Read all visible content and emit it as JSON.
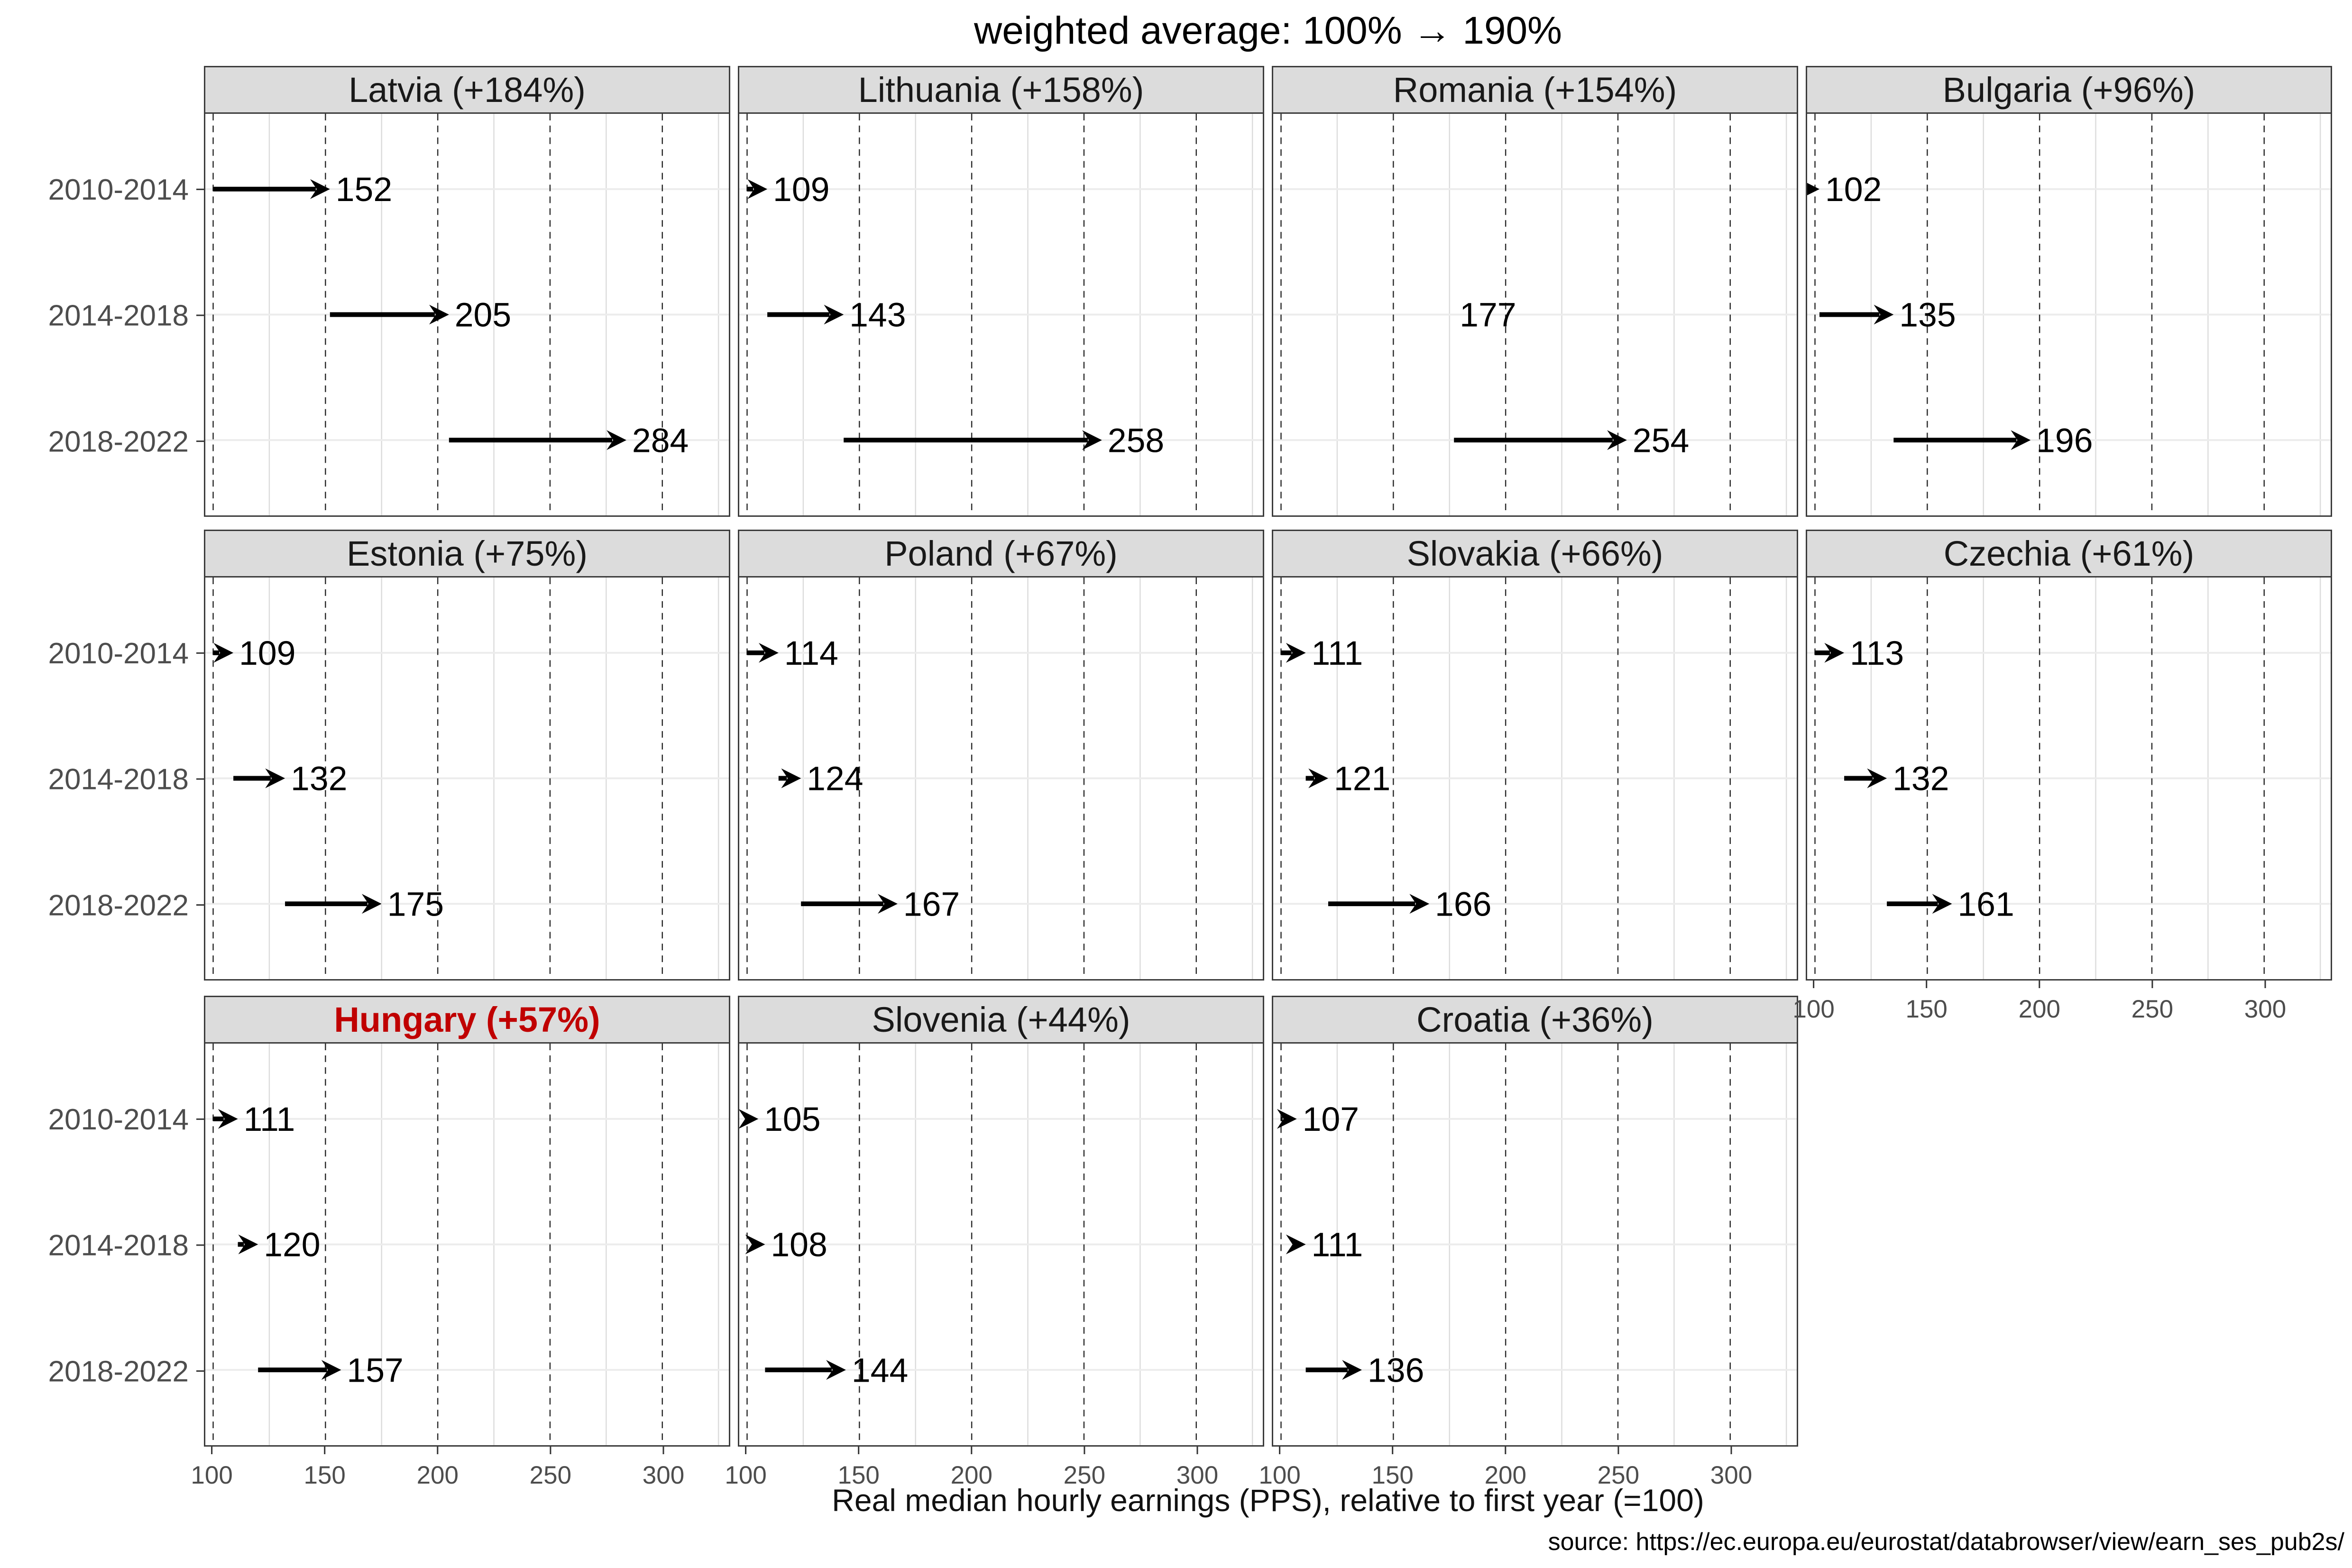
{
  "title": "weighted average: 100% → 190%",
  "axis_title": "Real median hourly earnings (PPS), relative to first year (=100)",
  "source_note": "source: https://ec.europa.eu/eurostat/databrowser/view/earn_ses_pub2s/",
  "colors": {
    "highlight_red": "#c00000",
    "strip_background": "#dcdcdc",
    "panel_border": "#3c3c3c",
    "grid_major_dashed": "#2b2b2b",
    "grid_minor": "#dcdcdc",
    "grid_row": "#ececec",
    "axis_text": "#4d4d4d",
    "arrow": "#000000"
  },
  "chart_data": {
    "type": "scatter",
    "variant": "faceted horizontal arrow (dumbbell) chart, 4 columns x 3 rows of facets",
    "title": "weighted average: 100% → 190%",
    "xlabel": "Real median hourly earnings (PPS), relative to first year (=100)",
    "categories": [
      "2010-2014",
      "2014-2018",
      "2018-2022"
    ],
    "x_ticks": [
      100,
      150,
      200,
      250,
      300
    ],
    "x_minor_ticks": [
      125,
      175,
      225,
      275,
      325
    ],
    "xlim": [
      96.5,
      330
    ],
    "grid": "dashed vertical majors, light solid minors, light horizontal row lines",
    "legend": "none",
    "panels": [
      {
        "country": "Latvia",
        "label": "Latvia (+184%)",
        "growth_pct": 184,
        "highlight": false,
        "segments": [
          {
            "period": "2010-2014",
            "from": 100,
            "to": 152
          },
          {
            "period": "2014-2018",
            "from": 152,
            "to": 205
          },
          {
            "period": "2018-2022",
            "from": 205,
            "to": 284
          }
        ]
      },
      {
        "country": "Lithuania",
        "label": "Lithuania (+158%)",
        "growth_pct": 158,
        "highlight": false,
        "segments": [
          {
            "period": "2010-2014",
            "from": 100,
            "to": 109
          },
          {
            "period": "2014-2018",
            "from": 109,
            "to": 143
          },
          {
            "period": "2018-2022",
            "from": 143,
            "to": 258
          }
        ]
      },
      {
        "country": "Romania",
        "label": "Romania (+154%)",
        "growth_pct": 154,
        "highlight": false,
        "segments": [
          {
            "period": "2010-2014",
            "from": null,
            "to": null
          },
          {
            "period": "2014-2018",
            "from": null,
            "to": 177
          },
          {
            "period": "2018-2022",
            "from": 177,
            "to": 254
          }
        ]
      },
      {
        "country": "Bulgaria",
        "label": "Bulgaria (+96%)",
        "growth_pct": 96,
        "highlight": false,
        "segments": [
          {
            "period": "2010-2014",
            "from": 100,
            "to": 102
          },
          {
            "period": "2014-2018",
            "from": 102,
            "to": 135
          },
          {
            "period": "2018-2022",
            "from": 135,
            "to": 196
          }
        ]
      },
      {
        "country": "Estonia",
        "label": "Estonia (+75%)",
        "growth_pct": 75,
        "highlight": false,
        "segments": [
          {
            "period": "2010-2014",
            "from": 100,
            "to": 109
          },
          {
            "period": "2014-2018",
            "from": 109,
            "to": 132
          },
          {
            "period": "2018-2022",
            "from": 132,
            "to": 175
          }
        ]
      },
      {
        "country": "Poland",
        "label": "Poland (+67%)",
        "growth_pct": 67,
        "highlight": false,
        "segments": [
          {
            "period": "2010-2014",
            "from": 100,
            "to": 114
          },
          {
            "period": "2014-2018",
            "from": 114,
            "to": 124
          },
          {
            "period": "2018-2022",
            "from": 124,
            "to": 167
          }
        ]
      },
      {
        "country": "Slovakia",
        "label": "Slovakia (+66%)",
        "growth_pct": 66,
        "highlight": false,
        "segments": [
          {
            "period": "2010-2014",
            "from": 100,
            "to": 111
          },
          {
            "period": "2014-2018",
            "from": 111,
            "to": 121
          },
          {
            "period": "2018-2022",
            "from": 121,
            "to": 166
          }
        ]
      },
      {
        "country": "Czechia",
        "label": "Czechia (+61%)",
        "growth_pct": 61,
        "highlight": false,
        "segments": [
          {
            "period": "2010-2014",
            "from": 100,
            "to": 113
          },
          {
            "period": "2014-2018",
            "from": 113,
            "to": 132
          },
          {
            "period": "2018-2022",
            "from": 132,
            "to": 161
          }
        ]
      },
      {
        "country": "Hungary",
        "label": "Hungary (+57%)",
        "growth_pct": 57,
        "highlight": true,
        "segments": [
          {
            "period": "2010-2014",
            "from": 100,
            "to": 111
          },
          {
            "period": "2014-2018",
            "from": 111,
            "to": 120
          },
          {
            "period": "2018-2022",
            "from": 120,
            "to": 157
          }
        ]
      },
      {
        "country": "Slovenia",
        "label": "Slovenia (+44%)",
        "growth_pct": 44,
        "highlight": false,
        "segments": [
          {
            "period": "2010-2014",
            "from": 100,
            "to": 105
          },
          {
            "period": "2014-2018",
            "from": 105,
            "to": 108
          },
          {
            "period": "2018-2022",
            "from": 108,
            "to": 144
          }
        ]
      },
      {
        "country": "Croatia",
        "label": "Croatia (+36%)",
        "growth_pct": 36,
        "highlight": false,
        "segments": [
          {
            "period": "2010-2014",
            "from": 100,
            "to": 107
          },
          {
            "period": "2014-2018",
            "from": 107,
            "to": 111
          },
          {
            "period": "2018-2022",
            "from": 111,
            "to": 136
          }
        ]
      }
    ]
  }
}
